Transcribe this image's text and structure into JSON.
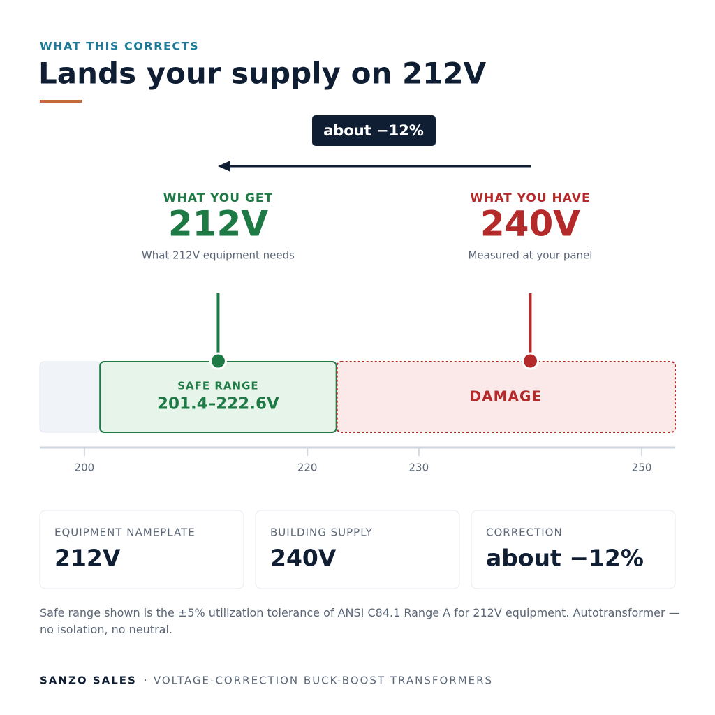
{
  "header": {
    "eyebrow": "WHAT THIS CORRECTS",
    "title": "Lands your supply on 212V"
  },
  "change_badge": "about −12%",
  "target": {
    "label": "WHAT YOU GET",
    "reading": "212V",
    "note": "What 212V equipment needs",
    "volts": 212
  },
  "source": {
    "label": "WHAT YOU HAVE",
    "reading": "240V",
    "note": "Measured at your panel",
    "volts": 240
  },
  "scale": {
    "xlim": [
      196,
      253
    ],
    "xticks": [
      200,
      220,
      230,
      250
    ],
    "safe": {
      "label": "SAFE RANGE",
      "range_label": "201.4–222.6V",
      "from": 201.4,
      "to": 222.6
    },
    "damage": {
      "label": "DAMAGE"
    }
  },
  "cards": [
    {
      "label": "EQUIPMENT NAMEPLATE",
      "value": "212V"
    },
    {
      "label": "BUILDING SUPPLY",
      "value": "240V"
    },
    {
      "label": "CORRECTION",
      "value": "about −12%"
    }
  ],
  "footnote": "Safe range shown is the ±5% utilization tolerance of ANSI C84.1 Range A for 212V equipment. Autotransformer — no isolation, no neutral.",
  "footer": {
    "brand": "SANZO SALES",
    "separator": "·",
    "tagline": "VOLTAGE-CORRECTION BUCK-BOOST TRANSFORMERS"
  }
}
